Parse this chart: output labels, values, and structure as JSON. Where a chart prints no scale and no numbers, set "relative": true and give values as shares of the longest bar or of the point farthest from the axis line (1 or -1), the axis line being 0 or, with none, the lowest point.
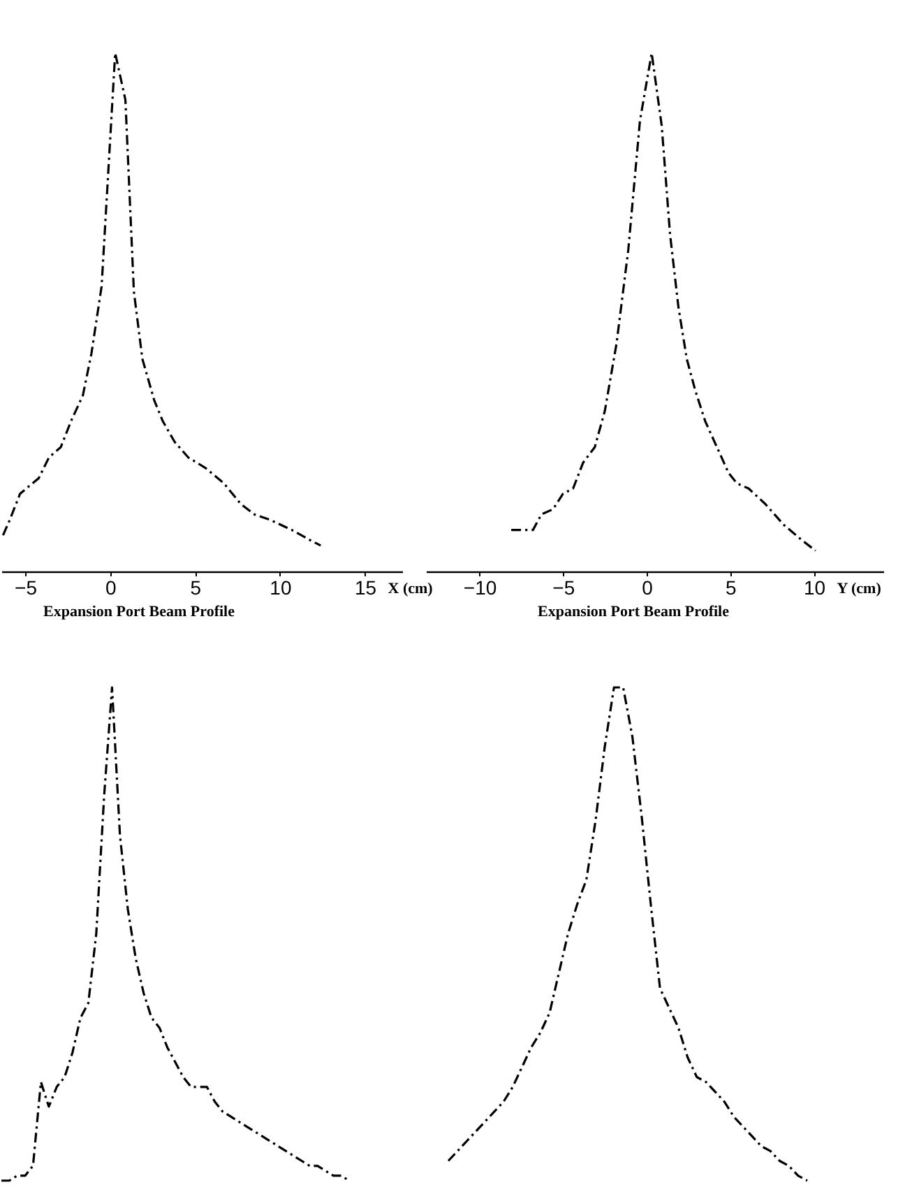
{
  "chart_data": [
    {
      "type": "line",
      "title": "Expansion Port Beam Profile",
      "xlabel": "X (cm)",
      "relative": true,
      "line_style": "dashed",
      "xlim": [
        -6.4,
        17.2
      ],
      "xticks": [
        -5,
        0,
        5,
        10,
        15
      ],
      "x": [
        -6.3,
        -5.9,
        -5.3,
        -4.2,
        -3.6,
        -2.9,
        -2.3,
        -1.6,
        -1.1,
        -0.5,
        0.3,
        0.9,
        1.4,
        1.9,
        2.6,
        3.1,
        3.8,
        4.6,
        5.6,
        6.7,
        7.7,
        8.5,
        9.4,
        10.7,
        11.8,
        12.4
      ],
      "series": [
        {
          "color": "#000000",
          "values": [
            0.07,
            0.1,
            0.15,
            0.18,
            0.22,
            0.24,
            0.29,
            0.34,
            0.42,
            0.55,
            1.0,
            0.91,
            0.54,
            0.41,
            0.33,
            0.29,
            0.25,
            0.22,
            0.2,
            0.17,
            0.13,
            0.11,
            0.1,
            0.08,
            0.06,
            0.05
          ]
        }
      ]
    },
    {
      "type": "line",
      "title": "Expansion Port Beam Profile",
      "xlabel": "Y (cm)",
      "relative": true,
      "line_style": "dashed",
      "xlim": [
        -13.2,
        14.2
      ],
      "xticks": [
        -10,
        -5,
        0,
        5,
        10
      ],
      "x": [
        -8.1,
        -7.4,
        -6.8,
        -6.3,
        -5.6,
        -5.0,
        -4.4,
        -3.8,
        -3.1,
        -2.5,
        -1.8,
        -1.1,
        -0.4,
        0.3,
        0.9,
        1.4,
        1.9,
        2.4,
        2.9,
        3.5,
        4.2,
        4.9,
        5.4,
        6.1,
        7.1,
        8.2,
        9.3,
        10.1
      ],
      "series": [
        {
          "color": "#000000",
          "values": [
            0.08,
            0.08,
            0.08,
            0.11,
            0.12,
            0.15,
            0.16,
            0.21,
            0.24,
            0.31,
            0.44,
            0.62,
            0.87,
            1.0,
            0.86,
            0.65,
            0.51,
            0.41,
            0.35,
            0.29,
            0.24,
            0.19,
            0.17,
            0.16,
            0.13,
            0.09,
            0.06,
            0.04
          ]
        }
      ]
    },
    {
      "type": "line",
      "relative": true,
      "line_style": "dashed",
      "tick_labels": false,
      "categories": [
        null,
        null,
        null,
        null,
        null,
        null,
        null,
        null,
        null,
        null,
        null,
        null,
        null,
        null,
        null,
        null,
        null,
        null,
        null,
        null,
        null,
        null,
        null,
        null,
        null,
        null,
        null,
        null,
        null,
        null,
        null,
        null,
        null,
        null,
        null,
        null,
        null,
        null,
        null,
        null,
        null,
        null,
        null,
        null,
        null
      ],
      "series": [
        {
          "color": "#000000",
          "values": [
            0.0,
            0.0,
            0.01,
            0.01,
            0.03,
            0.2,
            0.15,
            0.19,
            0.21,
            0.26,
            0.33,
            0.36,
            0.5,
            0.78,
            1.0,
            0.7,
            0.55,
            0.45,
            0.38,
            0.33,
            0.31,
            0.27,
            0.24,
            0.21,
            0.19,
            0.19,
            0.19,
            0.16,
            0.14,
            0.13,
            0.12,
            0.11,
            0.1,
            0.09,
            0.08,
            0.07,
            0.06,
            0.05,
            0.04,
            0.03,
            0.03,
            0.02,
            0.01,
            0.01,
            0.0
          ]
        }
      ]
    },
    {
      "type": "line",
      "relative": true,
      "line_style": "dashed",
      "tick_labels": false,
      "categories": [
        null,
        null,
        null,
        null,
        null,
        null,
        null,
        null,
        null,
        null,
        null,
        null,
        null,
        null,
        null,
        null,
        null,
        null,
        null,
        null,
        null,
        null,
        null,
        null,
        null,
        null,
        null,
        null,
        null,
        null,
        null,
        null,
        null,
        null,
        null,
        null,
        null,
        null,
        null,
        null
      ],
      "series": [
        {
          "color": "#000000",
          "values": [
            0.04,
            0.06,
            0.08,
            0.1,
            0.12,
            0.14,
            0.16,
            0.19,
            0.23,
            0.27,
            0.3,
            0.34,
            0.42,
            0.5,
            0.56,
            0.61,
            0.73,
            0.88,
            1.0,
            1.0,
            0.9,
            0.74,
            0.56,
            0.39,
            0.35,
            0.31,
            0.25,
            0.21,
            0.2,
            0.18,
            0.16,
            0.13,
            0.11,
            0.09,
            0.07,
            0.06,
            0.04,
            0.03,
            0.01,
            0.0
          ]
        }
      ]
    }
  ]
}
